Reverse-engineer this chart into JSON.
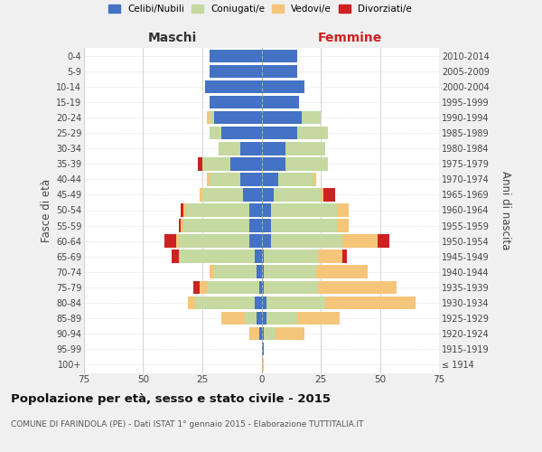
{
  "age_groups": [
    "100+",
    "95-99",
    "90-94",
    "85-89",
    "80-84",
    "75-79",
    "70-74",
    "65-69",
    "60-64",
    "55-59",
    "50-54",
    "45-49",
    "40-44",
    "35-39",
    "30-34",
    "25-29",
    "20-24",
    "15-19",
    "10-14",
    "5-9",
    "0-4"
  ],
  "birth_years": [
    "≤ 1914",
    "1915-1919",
    "1920-1924",
    "1925-1929",
    "1930-1934",
    "1935-1939",
    "1940-1944",
    "1945-1949",
    "1950-1954",
    "1955-1959",
    "1960-1964",
    "1965-1969",
    "1970-1974",
    "1975-1979",
    "1980-1984",
    "1985-1989",
    "1990-1994",
    "1995-1999",
    "2000-2004",
    "2005-2009",
    "2010-2014"
  ],
  "colors": {
    "celibi": "#4472c4",
    "coniugati": "#c5d9a0",
    "vedovi": "#f5c57a",
    "divorziati": "#cc2222"
  },
  "males": {
    "celibi": [
      0,
      0,
      1,
      2,
      3,
      1,
      2,
      3,
      5,
      5,
      5,
      8,
      9,
      13,
      9,
      17,
      20,
      22,
      24,
      22,
      22
    ],
    "coniugati": [
      0,
      0,
      0,
      5,
      25,
      22,
      18,
      32,
      30,
      28,
      27,
      17,
      13,
      12,
      9,
      5,
      2,
      0,
      0,
      0,
      0
    ],
    "vedovi": [
      0,
      0,
      4,
      10,
      3,
      3,
      2,
      0,
      1,
      1,
      1,
      1,
      1,
      0,
      0,
      0,
      1,
      0,
      0,
      0,
      0
    ],
    "divorziati": [
      0,
      0,
      0,
      0,
      0,
      3,
      0,
      3,
      5,
      1,
      1,
      0,
      0,
      2,
      0,
      0,
      0,
      0,
      0,
      0,
      0
    ]
  },
  "females": {
    "celibi": [
      0,
      1,
      1,
      2,
      2,
      1,
      1,
      1,
      4,
      4,
      4,
      5,
      7,
      10,
      10,
      15,
      17,
      16,
      18,
      15,
      15
    ],
    "coniugati": [
      0,
      0,
      5,
      13,
      25,
      23,
      22,
      23,
      30,
      28,
      28,
      20,
      15,
      18,
      17,
      13,
      8,
      0,
      0,
      0,
      0
    ],
    "vedovi": [
      1,
      0,
      12,
      18,
      38,
      33,
      22,
      10,
      15,
      5,
      5,
      1,
      1,
      0,
      0,
      0,
      0,
      0,
      0,
      0,
      0
    ],
    "divorziati": [
      0,
      0,
      0,
      0,
      0,
      0,
      0,
      2,
      5,
      0,
      0,
      5,
      0,
      0,
      0,
      0,
      0,
      0,
      0,
      0,
      0
    ]
  },
  "xlim": 75,
  "title": "Popolazione per età, sesso e stato civile - 2015",
  "subtitle": "COMUNE DI FARINDOLA (PE) - Dati ISTAT 1° gennaio 2015 - Elaborazione TUTTITALIA.IT",
  "ylabel_left": "Fasce di età",
  "ylabel_right": "Anni di nascita",
  "xlabel_left": "Maschi",
  "xlabel_right": "Femmine",
  "background_color": "#f0f0f0",
  "plot_bg": "#ffffff"
}
